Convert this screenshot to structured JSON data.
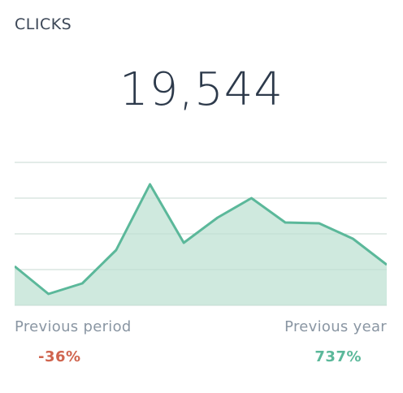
{
  "widget": {
    "title": "CLICKS",
    "value": "19,544"
  },
  "comparisons": {
    "previous_period": {
      "label": "Previous period",
      "value": "-36%",
      "color": "#d0654f"
    },
    "previous_year": {
      "label": "Previous year",
      "value": "737%",
      "color": "#5bb89a"
    }
  },
  "colors": {
    "line": "#5bb89a",
    "area": "#cfe9de",
    "grid": "#dcdcdc"
  },
  "chart_data": {
    "type": "area",
    "x": [
      1,
      2,
      3,
      4,
      5,
      6,
      7,
      8,
      9,
      10,
      11,
      12
    ],
    "series": [
      {
        "values": [
          48,
          14,
          27,
          68,
          149,
          77,
          108,
          132,
          102,
          101,
          82,
          50
        ]
      }
    ],
    "ylim": [
      0,
      176
    ],
    "grid": true,
    "gridlines": [
      0,
      44,
      88,
      132,
      176
    ],
    "legend": "none"
  }
}
